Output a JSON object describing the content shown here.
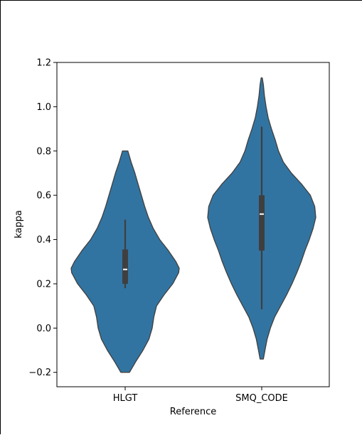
{
  "chart_data": {
    "type": "violin",
    "xlabel": "Reference",
    "ylabel": "kappa",
    "categories": [
      "HLGT",
      "SMQ_CODE"
    ],
    "ylim": [
      -0.265,
      1.2
    ],
    "yticks": [
      -0.2,
      0.0,
      0.2,
      0.4,
      0.6,
      0.8,
      1.0,
      1.2
    ],
    "ytick_labels": [
      "−0.2",
      "0.0",
      "0.2",
      "0.4",
      "0.6",
      "0.8",
      "1.0",
      "1.2"
    ],
    "grid": false,
    "fill_color": "#3274a1",
    "edge_color": "#3f3f3f",
    "series": [
      {
        "category": "HLGT",
        "box": {
          "whisker_low": 0.18,
          "q1": 0.2,
          "median": 0.265,
          "q3": 0.355,
          "whisker_high": 0.49
        },
        "density": [
          [
            -0.2,
            0.08
          ],
          [
            -0.15,
            0.2
          ],
          [
            -0.1,
            0.33
          ],
          [
            -0.05,
            0.44
          ],
          [
            0.0,
            0.5
          ],
          [
            0.05,
            0.53
          ],
          [
            0.1,
            0.58
          ],
          [
            0.15,
            0.72
          ],
          [
            0.2,
            0.88
          ],
          [
            0.25,
            0.99
          ],
          [
            0.27,
            1.0
          ],
          [
            0.3,
            0.94
          ],
          [
            0.35,
            0.8
          ],
          [
            0.4,
            0.64
          ],
          [
            0.45,
            0.52
          ],
          [
            0.5,
            0.43
          ],
          [
            0.55,
            0.36
          ],
          [
            0.6,
            0.3
          ],
          [
            0.65,
            0.24
          ],
          [
            0.7,
            0.18
          ],
          [
            0.75,
            0.11
          ],
          [
            0.8,
            0.05
          ]
        ]
      },
      {
        "category": "SMQ_CODE",
        "box": {
          "whisker_low": 0.085,
          "q1": 0.35,
          "median": 0.515,
          "q3": 0.6,
          "whisker_high": 0.91
        },
        "density": [
          [
            -0.14,
            0.03
          ],
          [
            -0.1,
            0.06
          ],
          [
            -0.05,
            0.1
          ],
          [
            0.0,
            0.16
          ],
          [
            0.05,
            0.24
          ],
          [
            0.1,
            0.35
          ],
          [
            0.15,
            0.46
          ],
          [
            0.2,
            0.56
          ],
          [
            0.25,
            0.65
          ],
          [
            0.3,
            0.73
          ],
          [
            0.35,
            0.8
          ],
          [
            0.4,
            0.88
          ],
          [
            0.45,
            0.95
          ],
          [
            0.5,
            1.0
          ],
          [
            0.55,
            0.98
          ],
          [
            0.6,
            0.9
          ],
          [
            0.65,
            0.74
          ],
          [
            0.7,
            0.55
          ],
          [
            0.75,
            0.4
          ],
          [
            0.8,
            0.31
          ],
          [
            0.85,
            0.25
          ],
          [
            0.9,
            0.18
          ],
          [
            0.95,
            0.12
          ],
          [
            1.0,
            0.08
          ],
          [
            1.05,
            0.05
          ],
          [
            1.1,
            0.03
          ],
          [
            1.13,
            0.01
          ]
        ]
      }
    ]
  }
}
